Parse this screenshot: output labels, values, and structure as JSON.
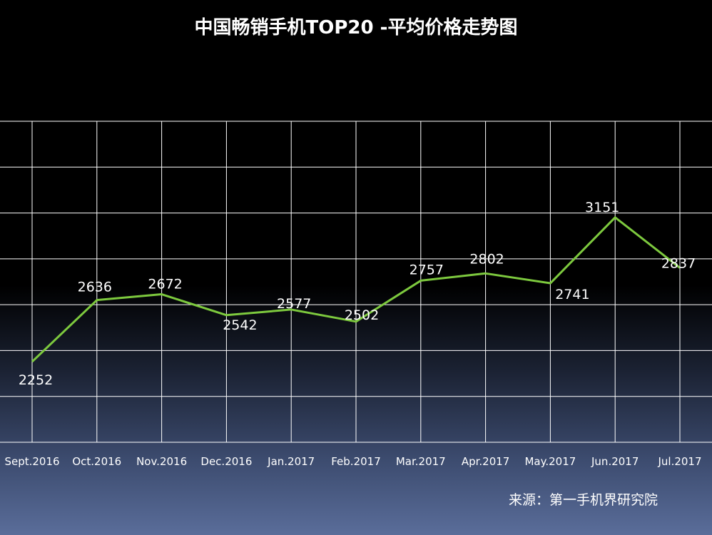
{
  "chart_data": {
    "type": "line",
    "title": "中国畅销手机TOP20 -平均价格走势图",
    "categories": [
      "Sept.2016",
      "Oct.2016",
      "Nov.2016",
      "Dec.2016",
      "Jan.2017",
      "Feb.2017",
      "Mar.2017",
      "Apr.2017",
      "May.2017",
      "Jun.2017",
      "Jul.2017"
    ],
    "values": [
      2252,
      2636,
      2672,
      2542,
      2577,
      2502,
      2757,
      2802,
      2741,
      3151,
      2837
    ],
    "data_labels": [
      "2252",
      "2636",
      "2672",
      "2542",
      "2577",
      "2502",
      "2757",
      "2802",
      "2741",
      "3151",
      "2837"
    ],
    "ylim": [
      1750,
      3750
    ],
    "line_color": "#7dc93e",
    "grid": true,
    "source": "来源：第一手机界研究院"
  }
}
